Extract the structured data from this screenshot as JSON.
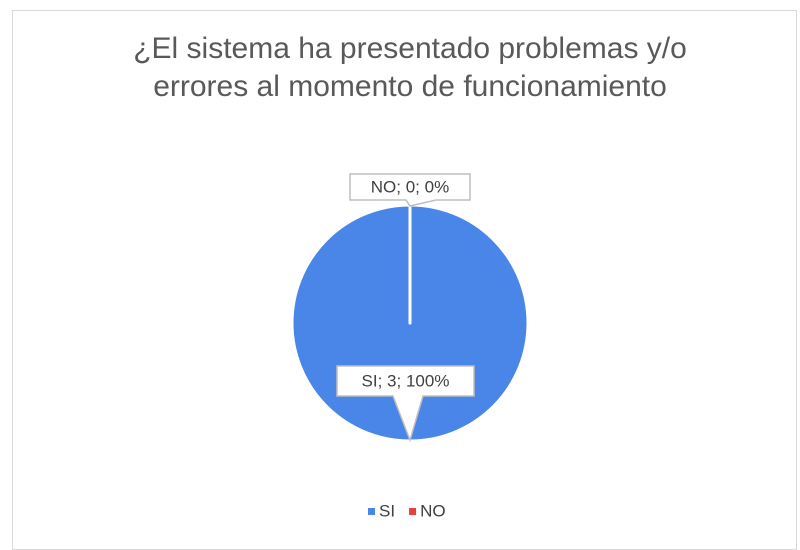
{
  "chart_data": {
    "type": "pie",
    "title": "¿El sistema ha presentado problemas y/o errores al momento de funcionamiento",
    "categories": [
      "SI",
      "NO"
    ],
    "values": [
      3,
      0
    ],
    "value_labels": [
      "SI; 3; 100%",
      "NO; 0; 0%"
    ],
    "colors": [
      "#4a86e8",
      "#e8413a"
    ],
    "legend": "bottom"
  }
}
